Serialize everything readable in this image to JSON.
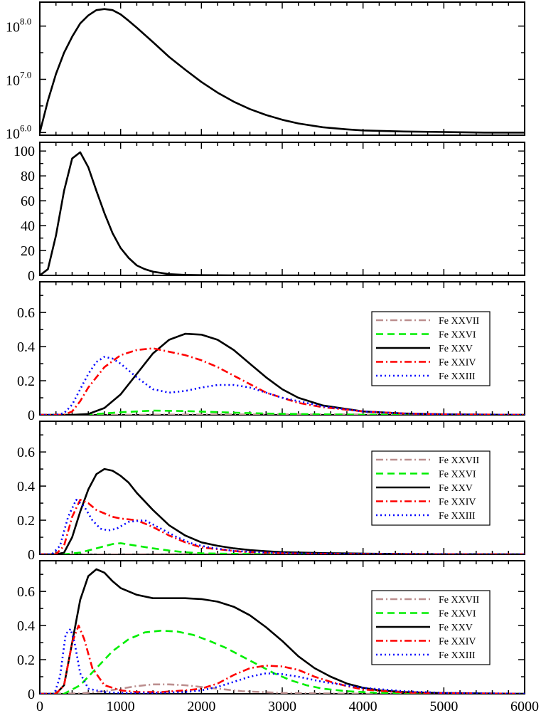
{
  "chart_data": [
    {
      "type": "line",
      "scale": "log",
      "x": [
        0,
        50,
        100,
        200,
        300,
        400,
        500,
        600,
        700,
        800,
        900,
        1000,
        1100,
        1200,
        1400,
        1600,
        1800,
        2000,
        2200,
        2400,
        2600,
        2800,
        3000,
        3200,
        3500,
        3800,
        4000,
        4500,
        5000,
        5500,
        6000
      ],
      "series": [
        {
          "name": "",
          "color": "#000000",
          "style": "solid",
          "values": [
            6.0,
            6.3,
            6.6,
            7.1,
            7.5,
            7.8,
            8.05,
            8.2,
            8.3,
            8.32,
            8.3,
            8.22,
            8.1,
            7.97,
            7.7,
            7.42,
            7.18,
            6.95,
            6.75,
            6.58,
            6.44,
            6.33,
            6.24,
            6.17,
            6.1,
            6.06,
            6.04,
            6.02,
            6.01,
            6.0,
            6.0
          ]
        }
      ],
      "ylim": [
        5.95,
        8.45
      ],
      "yticks": [
        6.0,
        7.0,
        8.0
      ],
      "ytick_labels": [
        "10",
        "10",
        "10"
      ],
      "ytick_exponents": [
        "6.0",
        "7.0",
        "8.0"
      ],
      "xlim": [
        0,
        6000
      ]
    },
    {
      "type": "line",
      "x": [
        0,
        100,
        200,
        300,
        400,
        500,
        600,
        700,
        800,
        900,
        1000,
        1100,
        1200,
        1300,
        1400,
        1500,
        1600,
        1800,
        2000,
        2500,
        3000,
        4000,
        5000,
        6000
      ],
      "series": [
        {
          "name": "",
          "color": "#000000",
          "style": "solid",
          "values": [
            0,
            5,
            32,
            68,
            94,
            99,
            87,
            68,
            50,
            34,
            22,
            14,
            8,
            5,
            3,
            2,
            1,
            0.4,
            0.2,
            0,
            0,
            0,
            0,
            0
          ]
        }
      ],
      "ylim": [
        0,
        107
      ],
      "yticks": [
        0,
        20,
        40,
        60,
        80,
        100
      ],
      "ytick_labels": [
        "0",
        "20",
        "40",
        "60",
        "80",
        "100"
      ],
      "xlim": [
        0,
        6000
      ]
    },
    {
      "type": "line",
      "ylim": [
        0,
        0.78
      ],
      "yticks": [
        0,
        0.2,
        0.4,
        0.6
      ],
      "ytick_labels": [
        "0",
        "0.2",
        "0.4",
        "0.6"
      ],
      "xlim": [
        0,
        6000
      ],
      "legend": [
        "Fe XXVII",
        "Fe XXVI",
        "Fe XXV",
        "Fe XXIV",
        "Fe XXIII"
      ],
      "series": [
        {
          "name": "Fe XXVII",
          "color": "#bc8f8f",
          "style": "dashdot",
          "x": [
            0,
            1000,
            2000,
            3000,
            4000,
            6000
          ],
          "values": [
            0,
            0,
            0.002,
            0.003,
            0.002,
            0
          ]
        },
        {
          "name": "Fe XXVI",
          "color": "#00ee00",
          "style": "dash",
          "x": [
            0,
            400,
            700,
            1000,
            1400,
            1800,
            2200,
            2600,
            3000,
            3500,
            4000,
            5000,
            6000
          ],
          "values": [
            0,
            0,
            0.005,
            0.015,
            0.025,
            0.022,
            0.016,
            0.01,
            0.006,
            0.003,
            0.001,
            0,
            0
          ]
        },
        {
          "name": "Fe XXV",
          "color": "#000000",
          "style": "solid",
          "x": [
            0,
            400,
            600,
            800,
            1000,
            1200,
            1400,
            1600,
            1800,
            2000,
            2200,
            2400,
            2600,
            2800,
            3000,
            3200,
            3500,
            4000,
            4500,
            5000,
            6000
          ],
          "values": [
            0,
            0,
            0.005,
            0.04,
            0.12,
            0.24,
            0.36,
            0.44,
            0.475,
            0.47,
            0.44,
            0.38,
            0.3,
            0.22,
            0.15,
            0.1,
            0.055,
            0.02,
            0.008,
            0.003,
            0
          ]
        },
        {
          "name": "Fe XXIV",
          "color": "#ff0000",
          "style": "dashdot",
          "x": [
            0,
            300,
            400,
            500,
            600,
            800,
            1000,
            1200,
            1400,
            1600,
            1800,
            2000,
            2200,
            2400,
            2600,
            2800,
            3000,
            3200,
            3500,
            4000,
            4500,
            5000,
            6000
          ],
          "values": [
            0,
            0,
            0.02,
            0.08,
            0.16,
            0.28,
            0.35,
            0.38,
            0.39,
            0.37,
            0.35,
            0.32,
            0.28,
            0.23,
            0.18,
            0.13,
            0.1,
            0.07,
            0.045,
            0.02,
            0.008,
            0.003,
            0
          ]
        },
        {
          "name": "Fe XXIII",
          "color": "#0000ff",
          "style": "dot",
          "x": [
            0,
            200,
            300,
            400,
            500,
            600,
            700,
            800,
            900,
            1000,
            1200,
            1400,
            1600,
            1800,
            2000,
            2200,
            2400,
            2600,
            2800,
            3000,
            3500,
            4000,
            4500,
            5000,
            6000
          ],
          "values": [
            0,
            0,
            0.01,
            0.06,
            0.15,
            0.24,
            0.31,
            0.34,
            0.33,
            0.3,
            0.22,
            0.15,
            0.13,
            0.14,
            0.16,
            0.175,
            0.175,
            0.16,
            0.13,
            0.1,
            0.05,
            0.02,
            0.008,
            0.003,
            0
          ]
        }
      ]
    },
    {
      "type": "line",
      "ylim": [
        0,
        0.78
      ],
      "yticks": [
        0,
        0.2,
        0.4,
        0.6
      ],
      "ytick_labels": [
        "0",
        "0.2",
        "0.4",
        "0.6"
      ],
      "xlim": [
        0,
        6000
      ],
      "legend": [
        "Fe XXVII",
        "Fe XXVI",
        "Fe XXV",
        "Fe XXIV",
        "Fe XXIII"
      ],
      "series": [
        {
          "name": "Fe XXVII",
          "color": "#bc8f8f",
          "style": "dashdot",
          "x": [
            0,
            1000,
            2000,
            3000,
            6000
          ],
          "values": [
            0,
            0,
            0.002,
            0.001,
            0
          ]
        },
        {
          "name": "Fe XXVI",
          "color": "#00ee00",
          "style": "dash",
          "x": [
            0,
            300,
            500,
            700,
            900,
            1000,
            1200,
            1400,
            1600,
            1800,
            2000,
            2500,
            3000,
            4000,
            6000
          ],
          "values": [
            0,
            0,
            0.01,
            0.035,
            0.06,
            0.065,
            0.05,
            0.035,
            0.022,
            0.012,
            0.006,
            0.002,
            0,
            0,
            0
          ]
        },
        {
          "name": "Fe XXV",
          "color": "#000000",
          "style": "solid",
          "x": [
            0,
            200,
            300,
            400,
            500,
            600,
            700,
            800,
            900,
            1000,
            1100,
            1200,
            1400,
            1600,
            1800,
            2000,
            2200,
            2400,
            2600,
            2800,
            3000,
            3500,
            4000,
            4500,
            5000,
            6000
          ],
          "values": [
            0,
            0,
            0.01,
            0.1,
            0.25,
            0.38,
            0.47,
            0.5,
            0.49,
            0.46,
            0.42,
            0.36,
            0.26,
            0.17,
            0.11,
            0.07,
            0.05,
            0.035,
            0.025,
            0.018,
            0.013,
            0.007,
            0.004,
            0.002,
            0.001,
            0
          ]
        },
        {
          "name": "Fe XXIV",
          "color": "#ff0000",
          "style": "dashdot",
          "x": [
            0,
            200,
            300,
            400,
            500,
            600,
            700,
            800,
            900,
            1000,
            1200,
            1400,
            1600,
            1800,
            2000,
            2500,
            3000,
            3500,
            4000,
            5000,
            6000
          ],
          "values": [
            0,
            0,
            0.05,
            0.22,
            0.32,
            0.3,
            0.26,
            0.24,
            0.22,
            0.21,
            0.2,
            0.16,
            0.11,
            0.07,
            0.04,
            0.015,
            0.006,
            0.003,
            0.001,
            0,
            0
          ]
        },
        {
          "name": "Fe XXIII",
          "color": "#0000ff",
          "style": "dot",
          "x": [
            0,
            150,
            250,
            350,
            450,
            550,
            650,
            750,
            850,
            950,
            1100,
            1300,
            1500,
            1700,
            1900,
            2100,
            2400,
            2800,
            3200,
            4000,
            5000,
            6000
          ],
          "values": [
            0,
            0,
            0.05,
            0.22,
            0.32,
            0.28,
            0.2,
            0.15,
            0.14,
            0.15,
            0.19,
            0.2,
            0.15,
            0.1,
            0.06,
            0.04,
            0.02,
            0.01,
            0.005,
            0.002,
            0,
            0
          ]
        }
      ]
    },
    {
      "type": "line",
      "ylim": [
        0,
        0.78
      ],
      "yticks": [
        0,
        0.2,
        0.4,
        0.6
      ],
      "ytick_labels": [
        "0",
        "0.2",
        "0.4",
        "0.6"
      ],
      "xlim": [
        0,
        6000
      ],
      "xticks": [
        0,
        1000,
        2000,
        3000,
        4000,
        5000,
        6000
      ],
      "xtick_labels": [
        "0",
        "1000",
        "2000",
        "3000",
        "4000",
        "5000",
        "6000"
      ],
      "legend": [
        "Fe XXVII",
        "Fe XXVI",
        "Fe XXV",
        "Fe XXIV",
        "Fe XXIII"
      ],
      "series": [
        {
          "name": "Fe XXVII",
          "color": "#bc8f8f",
          "style": "dashdot",
          "x": [
            0,
            500,
            800,
            1000,
            1200,
            1400,
            1600,
            1800,
            2000,
            2200,
            2500,
            3000,
            3500,
            4000,
            6000
          ],
          "values": [
            0,
            0.002,
            0.015,
            0.03,
            0.045,
            0.055,
            0.055,
            0.05,
            0.04,
            0.03,
            0.015,
            0.005,
            0.002,
            0,
            0
          ]
        },
        {
          "name": "Fe XXVI",
          "color": "#00ee00",
          "style": "dash",
          "x": [
            0,
            300,
            500,
            700,
            900,
            1100,
            1300,
            1500,
            1700,
            1900,
            2100,
            2300,
            2500,
            2700,
            2900,
            3100,
            3300,
            3500,
            3800,
            4200,
            4600,
            5000,
            6000
          ],
          "values": [
            0,
            0,
            0.05,
            0.15,
            0.25,
            0.32,
            0.36,
            0.37,
            0.365,
            0.345,
            0.31,
            0.27,
            0.22,
            0.17,
            0.12,
            0.08,
            0.05,
            0.03,
            0.015,
            0.005,
            0.002,
            0,
            0
          ]
        },
        {
          "name": "Fe XXV",
          "color": "#000000",
          "style": "solid",
          "x": [
            0,
            200,
            300,
            400,
            500,
            600,
            700,
            800,
            900,
            1000,
            1200,
            1400,
            1600,
            1800,
            2000,
            2200,
            2400,
            2600,
            2800,
            3000,
            3200,
            3400,
            3600,
            3800,
            4000,
            4200,
            4500,
            5000,
            5500,
            6000
          ],
          "values": [
            0,
            0,
            0.05,
            0.3,
            0.55,
            0.69,
            0.73,
            0.71,
            0.66,
            0.62,
            0.58,
            0.56,
            0.56,
            0.56,
            0.555,
            0.54,
            0.51,
            0.46,
            0.39,
            0.31,
            0.22,
            0.15,
            0.1,
            0.06,
            0.035,
            0.02,
            0.01,
            0.004,
            0.002,
            0
          ]
        },
        {
          "name": "Fe XXIV",
          "color": "#ff0000",
          "style": "dashdot",
          "x": [
            0,
            200,
            300,
            400,
            480,
            550,
            650,
            800,
            1000,
            1200,
            1500,
            1800,
            2000,
            2200,
            2400,
            2600,
            2800,
            3000,
            3200,
            3400,
            3600,
            3800,
            4000,
            4500,
            5000,
            6000
          ],
          "values": [
            0,
            0,
            0.05,
            0.3,
            0.4,
            0.32,
            0.15,
            0.05,
            0.02,
            0.01,
            0.01,
            0.02,
            0.03,
            0.06,
            0.11,
            0.15,
            0.165,
            0.16,
            0.14,
            0.1,
            0.07,
            0.045,
            0.025,
            0.008,
            0.003,
            0
          ]
        },
        {
          "name": "Fe XXIII",
          "color": "#0000ff",
          "style": "dot",
          "x": [
            0,
            180,
            250,
            320,
            380,
            430,
            500,
            600,
            800,
            1000,
            1400,
            1800,
            2000,
            2200,
            2400,
            2600,
            2800,
            3000,
            3200,
            3500,
            4000,
            4500,
            5000,
            6000
          ],
          "values": [
            0,
            0,
            0.1,
            0.35,
            0.38,
            0.3,
            0.12,
            0.03,
            0.01,
            0.005,
            0.005,
            0.01,
            0.02,
            0.04,
            0.07,
            0.1,
            0.12,
            0.115,
            0.1,
            0.07,
            0.035,
            0.015,
            0.005,
            0
          ]
        }
      ]
    }
  ]
}
